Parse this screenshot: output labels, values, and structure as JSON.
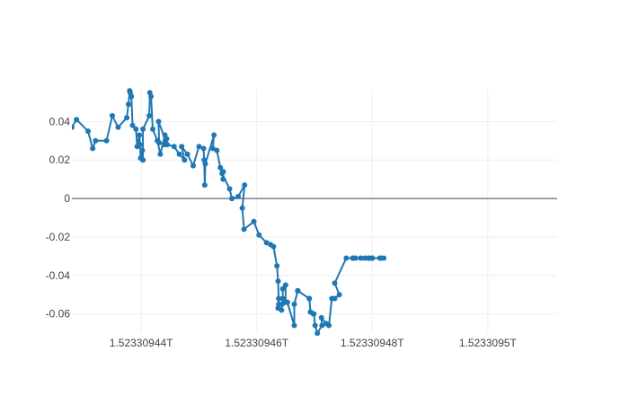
{
  "chart_data": {
    "type": "line",
    "title": "",
    "xlabel": "",
    "ylabel": "",
    "x_tick_labels": [
      "1.52330944T",
      "1.52330946T",
      "1.52330948T",
      "1.5233095T"
    ],
    "y_tick_labels": [
      "0.04",
      "0.02",
      "0",
      "-0.02",
      "-0.04",
      "-0.06"
    ],
    "x_ticks": [
      1.52330944,
      1.52330946,
      1.52330948,
      1.5233095
    ],
    "y_ticks": [
      0.04,
      0.02,
      0,
      -0.02,
      -0.04,
      -0.06
    ],
    "xlim": [
      1.523309428,
      1.523309512
    ],
    "ylim": [
      -0.0695,
      0.0565
    ],
    "grid": true,
    "legend": "none",
    "colors": {
      "line": "#1f77b4",
      "grid": "#eeeeee",
      "zero_line": "#444444",
      "text": "#444444"
    },
    "series": [
      {
        "x": [
          1.523309428,
          1.5233094288,
          1.5233094308,
          1.5233094316,
          1.5233094321,
          1.523309434,
          1.523309435,
          1.523309436,
          1.5233094375,
          1.5233094378,
          1.523309438,
          1.5233094381,
          1.5233094383,
          1.5233094385,
          1.5233094391,
          1.5233094393,
          1.5233094397,
          1.5233094398,
          1.5233094399,
          1.5233094402,
          1.5233094403,
          1.5233094403,
          1.5233094414,
          1.5233094415,
          1.5233094417,
          1.523309442,
          1.5233094428,
          1.5233094433,
          1.5233094441,
          1.5233094442,
          1.5233094444,
          1.523309444,
          1.5233094431,
          1.523309443,
          1.5233094445,
          1.5233094457,
          1.5233094466,
          1.5233094475,
          1.523309447,
          1.523309448,
          1.523309449,
          1.52330945,
          1.5233094508,
          1.5233094509,
          1.523309451,
          1.5233094511,
          1.5233094526,
          1.5233094524,
          1.5233094531,
          1.5233094537,
          1.5233094542,
          1.5233094542,
          1.523309454,
          1.5233094553,
          1.5233094557,
          1.5233094568,
          1.5233094579,
          1.5233094575,
          1.5233094578,
          1.5233094595,
          1.5233094604,
          1.5233094617,
          1.5233094624,
          1.5233094629,
          1.5233094635,
          1.5233094637,
          1.5233094638,
          1.5233094638,
          1.5233094637,
          1.5233094643,
          1.5233094644,
          1.5233094645,
          1.5233094645,
          1.523309465,
          1.523309465,
          1.5233094653,
          1.5233094653,
          1.5233094665,
          1.5233094665,
          1.5233094671,
          1.5233094671,
          1.5233094671,
          1.5233094691,
          1.5233094691,
          1.5233094693,
          1.5233094693,
          1.5233094698,
          1.5233094699,
          1.5233094701,
          1.5233094705,
          1.5233094713,
          1.5233094712,
          1.523309472,
          1.5233094725,
          1.523309473,
          1.5233094735,
          1.5233094743,
          1.5233094735,
          1.5233094755,
          1.5233094766,
          1.5233094767,
          1.5233094771,
          1.523309478,
          1.523309478,
          1.5233094787,
          1.5233094793,
          1.5233094795,
          1.52330948,
          1.52330948,
          1.52330948,
          1.5233094813,
          1.5233094815,
          1.523309482
        ],
        "y": [
          0.037,
          0.041,
          0.035,
          0.026,
          0.03,
          0.03,
          0.043,
          0.037,
          0.042,
          0.049,
          0.056,
          0.055,
          0.053,
          0.038,
          0.036,
          0.027,
          0.033,
          0.028,
          0.021,
          0.025,
          0.02,
          0.036,
          0.043,
          0.055,
          0.053,
          0.036,
          0.03,
          0.023,
          0.033,
          0.03,
          0.031,
          0.028,
          0.029,
          0.04,
          0.028,
          0.027,
          0.023,
          0.02,
          0.027,
          0.023,
          0.017,
          0.027,
          0.026,
          0.02,
          0.007,
          0.018,
          0.033,
          0.026,
          0.025,
          0.016,
          0.01,
          0.014,
          0.013,
          0.005,
          0.0,
          0.001,
          0.007,
          -0.005,
          -0.016,
          -0.012,
          -0.019,
          -0.023,
          -0.024,
          -0.025,
          -0.035,
          -0.043,
          -0.052,
          -0.055,
          -0.057,
          -0.058,
          -0.055,
          -0.052,
          -0.047,
          -0.045,
          -0.054,
          -0.054,
          -0.054,
          -0.066,
          -0.055,
          -0.048,
          -0.048,
          -0.048,
          -0.052,
          -0.052,
          -0.059,
          -0.059,
          -0.06,
          -0.06,
          -0.066,
          -0.07,
          -0.066,
          -0.062,
          -0.065,
          -0.066,
          -0.052,
          -0.052,
          -0.05,
          -0.044,
          -0.031,
          -0.031,
          -0.031,
          -0.031,
          -0.031,
          -0.031,
          -0.031,
          -0.031,
          -0.031,
          -0.031,
          -0.031,
          -0.031,
          -0.031,
          -0.031,
          -0.031
        ]
      }
    ]
  }
}
